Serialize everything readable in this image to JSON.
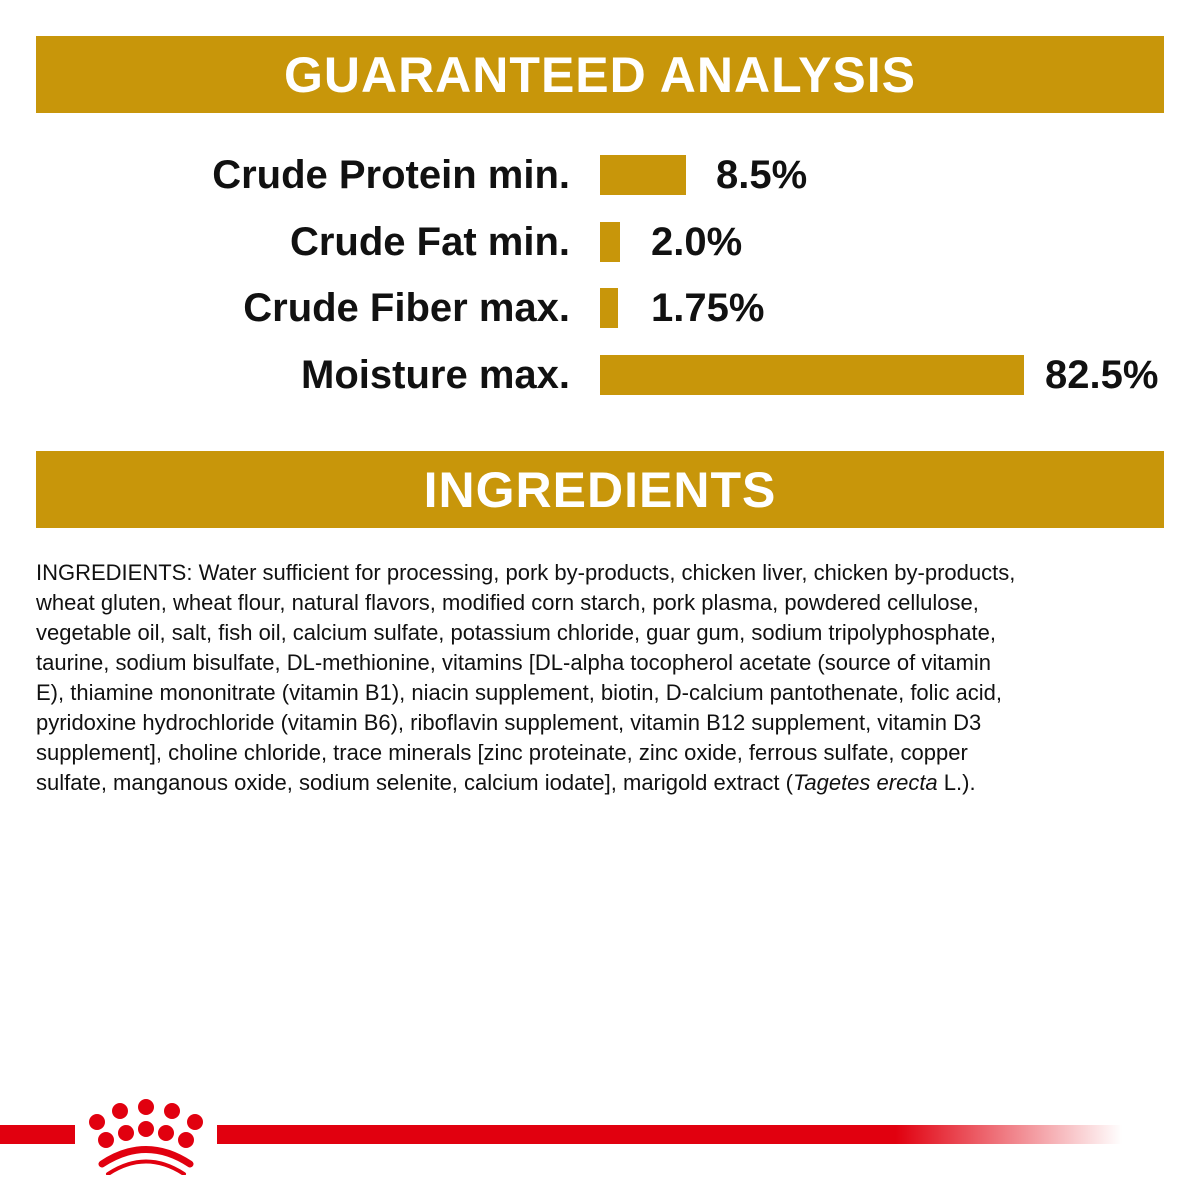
{
  "analysis": {
    "title": "GUARANTEED ANALYSIS",
    "rows": [
      {
        "label": "Crude Protein min.",
        "value": "8.5%"
      },
      {
        "label": "Crude Fat min.",
        "value": "2.0%"
      },
      {
        "label": "Crude Fiber max.",
        "value": "1.75%"
      },
      {
        "label": "Moisture max.",
        "value": "82.5%"
      }
    ]
  },
  "chart_data": {
    "type": "bar",
    "orientation": "horizontal",
    "categories": [
      "Crude Protein min.",
      "Crude Fat min.",
      "Crude Fiber max.",
      "Moisture max."
    ],
    "values": [
      8.5,
      2.0,
      1.75,
      82.5
    ],
    "unit": "%",
    "color": "#C8960A"
  },
  "ingredients": {
    "title": "INGREDIENTS",
    "lines": [
      "INGREDIENTS: Water sufficient for processing, pork by-products, chicken liver, chicken by-products,",
      "wheat gluten, wheat flour, natural flavors, modified corn starch, pork plasma, powdered cellulose,",
      "vegetable oil, salt, fish oil, calcium sulfate, potassium chloride, guar gum, sodium tripolyphosphate,",
      "taurine, sodium bisulfate, DL-methionine, vitamins [DL-alpha tocopherol acetate (source of vitamin",
      "E), thiamine mononitrate (vitamin B1), niacin supplement, biotin, D-calcium pantothenate, folic acid,",
      "pyridoxine hydrochloride (vitamin B6), riboflavin supplement, vitamin B12 supplement, vitamin D3",
      "supplement], choline chloride, trace minerals [zinc proteinate, zinc oxide, ferrous sulfate, copper"
    ],
    "last_line": {
      "before": "sulfate, manganous oxide, sodium selenite, calcium iodate], marigold extract (",
      "italic": "Tagetes erecta",
      "after": " L.)."
    }
  },
  "footer": {
    "logo": "royal-canin-crown-logo",
    "brand_color": "#E1000F"
  },
  "colors": {
    "accent": "#C8960A",
    "text": "#111111"
  }
}
